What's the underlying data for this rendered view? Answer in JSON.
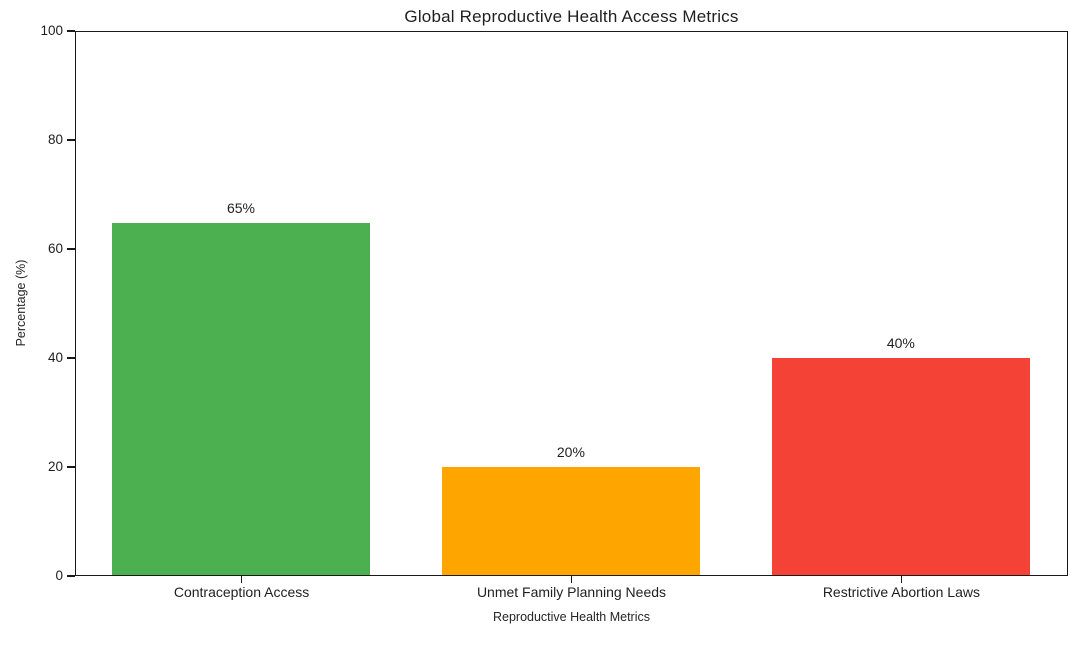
{
  "chart_data": {
    "type": "bar",
    "title": "Global Reproductive Health Access Metrics",
    "xlabel": "Reproductive Health Metrics",
    "ylabel": "Percentage (%)",
    "categories": [
      "Contraception Access",
      "Unmet Family Planning Needs",
      "Restrictive Abortion Laws"
    ],
    "values": [
      65,
      20,
      40
    ],
    "value_labels": [
      "65%",
      "20%",
      "40%"
    ],
    "bar_colors": [
      "#4caf50",
      "#ffa500",
      "#f44336"
    ],
    "ylim": [
      0,
      100
    ],
    "yticks": [
      0,
      20,
      40,
      60,
      80,
      100
    ],
    "ytick_labels": [
      "0",
      "20",
      "40",
      "60",
      "80",
      "100"
    ],
    "grid": false,
    "legend": "none",
    "background": "#ffffff",
    "text_color": "#1f1f1f",
    "spine_color": "#1a1a1a"
  }
}
